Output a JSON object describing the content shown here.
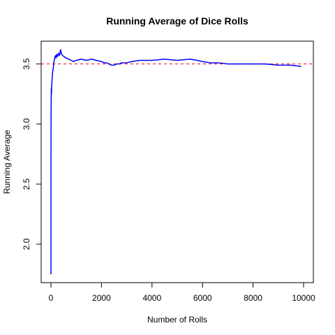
{
  "chart_data": {
    "type": "line",
    "title": "Running Average of Dice Rolls",
    "xlabel": "Number of Rolls",
    "ylabel": "Running Average",
    "xlim": [
      0,
      10000
    ],
    "ylim": [
      1.75,
      3.62
    ],
    "x_ticks": [
      0,
      2000,
      4000,
      6000,
      8000,
      10000
    ],
    "x_tick_labels": [
      "0",
      "2000",
      "4000",
      "6000",
      "8000",
      "10000"
    ],
    "y_ticks": [
      2.0,
      2.5,
      3.0,
      3.5
    ],
    "y_tick_labels": [
      "2.0",
      "2.5",
      "3.0",
      "3.5"
    ],
    "reference_line": {
      "y": 3.5,
      "color": "#ff0000",
      "style": "dashed"
    },
    "series": [
      {
        "color": "#0000ff",
        "x": [
          1,
          3,
          6,
          10,
          15,
          20,
          30,
          40,
          50,
          60,
          80,
          100,
          120,
          150,
          180,
          200,
          230,
          260,
          300,
          340,
          380,
          420,
          470,
          520,
          600,
          700,
          800,
          900,
          1000,
          1200,
          1400,
          1600,
          1800,
          2000,
          2100,
          2200,
          2300,
          2400,
          2500,
          2600,
          2700,
          2800,
          3000,
          3200,
          3500,
          4000,
          4500,
          5000,
          5500,
          5800,
          6000,
          6300,
          6600,
          7000,
          7500,
          8000,
          8500,
          9000,
          9500,
          9900
        ],
        "y": [
          1.75,
          2.95,
          3.1,
          3.22,
          3.3,
          3.25,
          3.32,
          3.36,
          3.38,
          3.42,
          3.45,
          3.48,
          3.52,
          3.55,
          3.57,
          3.55,
          3.58,
          3.56,
          3.59,
          3.57,
          3.62,
          3.58,
          3.57,
          3.56,
          3.55,
          3.54,
          3.53,
          3.52,
          3.53,
          3.54,
          3.53,
          3.54,
          3.53,
          3.52,
          3.51,
          3.51,
          3.5,
          3.49,
          3.49,
          3.5,
          3.5,
          3.51,
          3.51,
          3.52,
          3.53,
          3.53,
          3.54,
          3.53,
          3.54,
          3.53,
          3.52,
          3.51,
          3.51,
          3.5,
          3.5,
          3.5,
          3.5,
          3.49,
          3.49,
          3.48
        ]
      }
    ]
  }
}
